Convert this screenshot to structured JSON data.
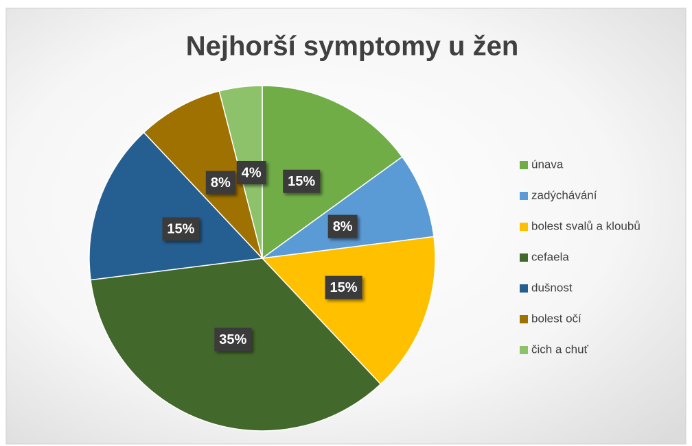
{
  "chart_data": {
    "type": "pie",
    "title": "Nejhorší symptomy u žen",
    "categories": [
      "únava",
      "zadýchávání",
      "bolest svalů a kloubů",
      "cefaela",
      "dušnost",
      "bolest očí",
      "čich a chuť"
    ],
    "values": [
      15,
      8,
      15,
      35,
      15,
      8,
      4
    ],
    "value_labels": [
      "15%",
      "8%",
      "15%",
      "35%",
      "15%",
      "8%",
      "4%"
    ],
    "colors": [
      "#70ad47",
      "#5b9bd5",
      "#ffc000",
      "#43682b",
      "#255e91",
      "#9e7100",
      "#8dc26a"
    ],
    "legend": "right"
  }
}
